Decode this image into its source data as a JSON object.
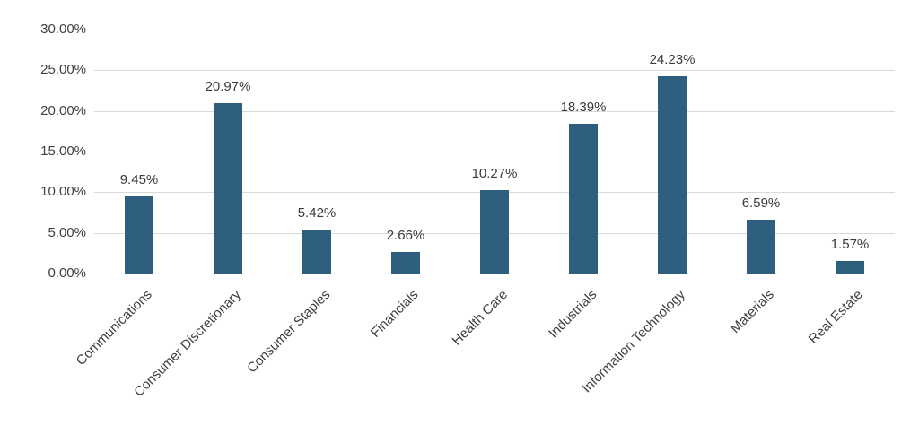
{
  "chart_data": {
    "type": "bar",
    "title": "",
    "xlabel": "",
    "ylabel": "",
    "categories": [
      "Communications",
      "Consumer Discretionary",
      "Consumer Staples",
      "Financials",
      "Health Care",
      "Industrials",
      "Information Technology",
      "Materials",
      "Real Estate"
    ],
    "values": [
      9.45,
      20.97,
      5.42,
      2.66,
      10.27,
      18.39,
      24.23,
      6.59,
      1.57
    ],
    "value_labels": [
      "9.45%",
      "20.97%",
      "5.42%",
      "2.66%",
      "10.27%",
      "18.39%",
      "24.23%",
      "6.59%",
      "1.57%"
    ],
    "ylim": [
      0,
      30
    ],
    "ytick_step": 5,
    "ytick_labels": [
      "0.00%",
      "5.00%",
      "10.00%",
      "15.00%",
      "20.00%",
      "25.00%",
      "30.00%"
    ],
    "grid": true,
    "legend": "none",
    "bar_color": "#2E5F7E",
    "gridline_color": "#D9D9D9",
    "text_color": "#3F3F3F"
  }
}
